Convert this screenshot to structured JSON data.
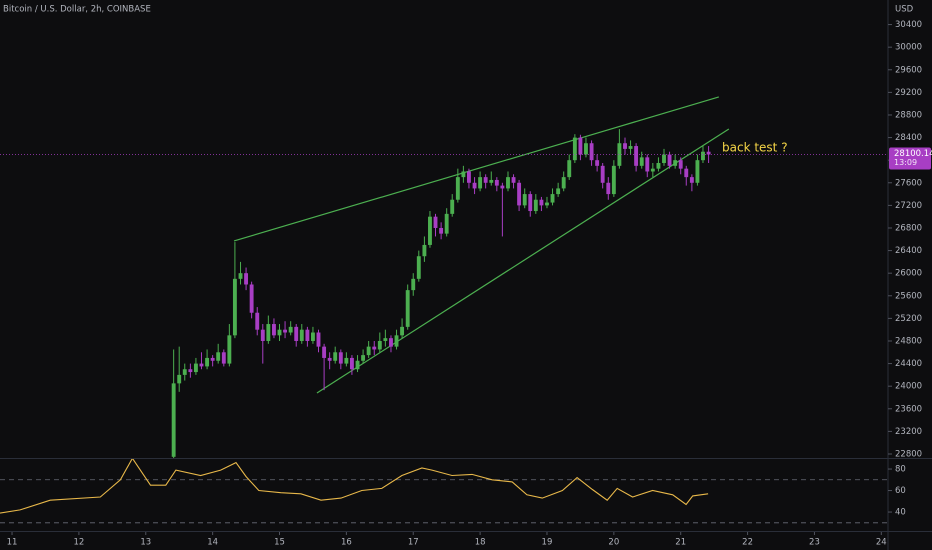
{
  "chart_data": {
    "type": "candlestick",
    "title": "Bitcoin / U.S. Dollar, 2h, COINBASE",
    "y_axis_label": "USD",
    "annotation": "back test ?",
    "countdown": "13:09",
    "up_color": "#4caf50",
    "down_color": "#a83ec4",
    "xlim": [
      10.82,
      24.1
    ],
    "xticks": [
      11,
      12,
      13,
      14,
      15,
      16,
      17,
      18,
      19,
      20,
      21,
      22,
      23,
      24
    ],
    "ylim": [
      22729,
      30835
    ],
    "yticks": [
      22800,
      23200,
      23600,
      24000,
      24400,
      24800,
      25200,
      25600,
      26000,
      26400,
      26800,
      27200,
      27600,
      28000,
      28400,
      28800,
      29200,
      29600,
      30000,
      30400
    ],
    "x": [
      13.417,
      13.5,
      13.583,
      13.667,
      13.75,
      13.833,
      13.917,
      14,
      14.083,
      14.167,
      14.25,
      14.333,
      14.417,
      14.5,
      14.583,
      14.667,
      14.75,
      14.833,
      14.917,
      15,
      15.083,
      15.167,
      15.25,
      15.333,
      15.417,
      15.5,
      15.583,
      15.667,
      15.75,
      15.833,
      15.917,
      16,
      16.083,
      16.167,
      16.25,
      16.333,
      16.417,
      16.5,
      16.583,
      16.667,
      16.75,
      16.833,
      16.917,
      17,
      17.083,
      17.167,
      17.25,
      17.333,
      17.417,
      17.5,
      17.583,
      17.667,
      17.75,
      17.833,
      17.917,
      18,
      18.083,
      18.167,
      18.25,
      18.333,
      18.417,
      18.5,
      18.583,
      18.667,
      18.75,
      18.833,
      18.917,
      19,
      19.083,
      19.167,
      19.25,
      19.333,
      19.417,
      19.5,
      19.583,
      19.667,
      19.75,
      19.833,
      19.917,
      20,
      20.083,
      20.167,
      20.25,
      20.333,
      20.417,
      20.5,
      20.583,
      20.667,
      20.75,
      20.833,
      20.917,
      21,
      21.083,
      21.167,
      21.25,
      21.333,
      21.417
    ],
    "open": [
      22750,
      24050,
      24200,
      24300,
      24250,
      24400,
      24350,
      24500,
      24450,
      24600,
      24400,
      24900,
      25900,
      26000,
      25800,
      25300,
      25000,
      24800,
      25100,
      24900,
      25000,
      24950,
      25050,
      24800,
      25000,
      24800,
      24950,
      24700,
      24500,
      24450,
      24600,
      24400,
      24500,
      24300,
      24450,
      24550,
      24700,
      24650,
      24800,
      24850,
      24700,
      24900,
      25050,
      25700,
      25900,
      26300,
      26500,
      27000,
      26800,
      26700,
      27050,
      27300,
      27700,
      27800,
      27600,
      27500,
      27700,
      27600,
      27650,
      27550,
      27500,
      27700,
      27600,
      27200,
      27400,
      27100,
      27300,
      27200,
      27250,
      27400,
      27500,
      27700,
      28000,
      28400,
      28100,
      28300,
      28000,
      27900,
      27600,
      27400,
      27900,
      28300,
      28200,
      28250,
      27900,
      28050,
      27800,
      27850,
      27950,
      28100,
      27900,
      28000,
      27850,
      27700,
      27600,
      28000,
      28150
    ],
    "high": [
      24650,
      24700,
      24400,
      24400,
      24500,
      24600,
      24650,
      24550,
      24750,
      24650,
      25100,
      26550,
      26200,
      26100,
      25850,
      25400,
      25100,
      25250,
      25200,
      25100,
      25150,
      25150,
      25100,
      25100,
      25050,
      25050,
      25000,
      24750,
      24600,
      24700,
      24650,
      24600,
      24550,
      24550,
      24650,
      24800,
      24800,
      24950,
      25000,
      24900,
      25000,
      25200,
      25800,
      26000,
      26400,
      26650,
      27100,
      27050,
      26900,
      27150,
      27400,
      27850,
      27900,
      27850,
      27700,
      27800,
      27750,
      27800,
      27700,
      27600,
      27800,
      27750,
      27650,
      27500,
      27450,
      27400,
      27350,
      27350,
      27500,
      27600,
      27800,
      28100,
      28460,
      28450,
      28400,
      28350,
      28100,
      27950,
      27700,
      28000,
      28550,
      28400,
      28350,
      28300,
      28150,
      28100,
      27950,
      28050,
      28200,
      28150,
      28100,
      28050,
      27900,
      27750,
      28100,
      28250,
      28250
    ],
    "low": [
      22700,
      23900,
      24100,
      24150,
      24200,
      24300,
      24300,
      24350,
      24400,
      24350,
      24350,
      24850,
      25800,
      25700,
      25200,
      24900,
      24400,
      24750,
      24850,
      24800,
      24850,
      24900,
      24700,
      24750,
      24700,
      24750,
      24600,
      23930,
      24300,
      24400,
      24300,
      24350,
      24200,
      24250,
      24400,
      24500,
      24550,
      24600,
      24700,
      24600,
      24650,
      24850,
      25000,
      25600,
      25850,
      26200,
      26450,
      26650,
      26600,
      26650,
      27000,
      27250,
      27600,
      27500,
      27400,
      27450,
      27500,
      27550,
      27450,
      26650,
      27450,
      27500,
      27100,
      27150,
      27000,
      27050,
      27100,
      27150,
      27200,
      27350,
      27450,
      27650,
      27950,
      28000,
      28050,
      27900,
      27800,
      27500,
      27300,
      27350,
      27850,
      28100,
      28100,
      27800,
      27850,
      27700,
      27700,
      27800,
      27900,
      27850,
      27850,
      27750,
      27550,
      27450,
      27550,
      27950,
      27950
    ],
    "close": [
      24050,
      24200,
      24300,
      24250,
      24400,
      24350,
      24500,
      24450,
      24600,
      24400,
      24900,
      25900,
      26000,
      25800,
      25300,
      25000,
      24800,
      25100,
      24900,
      25000,
      24950,
      25050,
      24800,
      25000,
      24800,
      24950,
      24700,
      24500,
      24450,
      24600,
      24400,
      24500,
      24300,
      24450,
      24550,
      24700,
      24650,
      24800,
      24850,
      24700,
      24900,
      25050,
      25700,
      25900,
      26300,
      26500,
      27000,
      26800,
      26700,
      27050,
      27300,
      27700,
      27800,
      27600,
      27500,
      27700,
      27600,
      27650,
      27550,
      27500,
      27700,
      27600,
      27200,
      27400,
      27100,
      27300,
      27200,
      27250,
      27400,
      27500,
      27700,
      28000,
      28400,
      28100,
      28300,
      28000,
      27900,
      27600,
      27400,
      27900,
      28300,
      28200,
      28250,
      27900,
      28050,
      27800,
      27850,
      27950,
      28100,
      27900,
      28000,
      27850,
      27700,
      27600,
      28000,
      28150,
      28100.14
    ],
    "trendlines": [
      {
        "color": "#4caf50",
        "x": [
          14.32,
          21.57
        ],
        "y": [
          26570,
          29119
        ]
      },
      {
        "color": "#4caf50",
        "x": [
          15.56,
          21.72
        ],
        "y": [
          23880,
          28552
        ]
      }
    ],
    "rsi": {
      "color": "#e8b84a",
      "ylim": [
        23.3,
        88.4
      ],
      "yticks": [
        40,
        60,
        80
      ],
      "bands": [
        30,
        70
      ],
      "x": [
        10.82,
        11.12,
        11.57,
        12.32,
        12.62,
        12.8,
        13.07,
        13.3,
        13.45,
        13.82,
        14.12,
        14.35,
        14.5,
        14.69,
        15.02,
        15.32,
        15.62,
        15.92,
        16.23,
        16.53,
        16.83,
        17.13,
        17.28,
        17.58,
        17.88,
        18.18,
        18.48,
        18.7,
        18.93,
        19.23,
        19.45,
        19.68,
        19.9,
        20.05,
        20.28,
        20.58,
        20.88,
        21.08,
        21.18,
        21.41
      ],
      "values": [
        39,
        42,
        51,
        54,
        70,
        90,
        65,
        65,
        79,
        74,
        79,
        86,
        73,
        60,
        58,
        57,
        51,
        53,
        60,
        62,
        74,
        81,
        79,
        74,
        75,
        70,
        68,
        56,
        53,
        60,
        72,
        61,
        51,
        62,
        54,
        60,
        56,
        47,
        55,
        57
      ]
    }
  }
}
